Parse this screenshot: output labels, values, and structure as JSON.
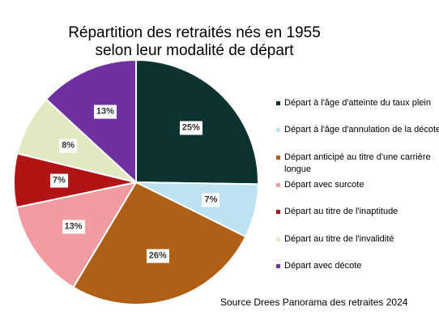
{
  "chart_data": {
    "type": "pie",
    "title": [
      "Répartition des retraités nés en 1955",
      "selon leur modalité de départ"
    ],
    "slices": [
      {
        "name": "Départ à l'âge d'atteinte du taux plein",
        "value": 25,
        "label": "25%",
        "color": "#0d3330"
      },
      {
        "name": "Départ à l'âge d'annulation de la décote",
        "value": 7,
        "label": "7%",
        "color": "#bde3f2"
      },
      {
        "name": "Départ anticipé au titre d'une carrière longue",
        "value": 26,
        "label": "26%",
        "color": "#b06016"
      },
      {
        "name": "Départ avec surcote",
        "value": 13,
        "label": "13%",
        "color": "#f29ba1"
      },
      {
        "name": "Départ au titre de l'inaptitude",
        "value": 7,
        "label": "7%",
        "color": "#b01414"
      },
      {
        "name": "Départ au titre de l'invalidité",
        "value": 8,
        "label": "8%",
        "color": "#e4e8c1"
      },
      {
        "name": "Départ avec décote",
        "value": 13,
        "label": "13%",
        "color": "#7030a0"
      }
    ],
    "legend_position": "right",
    "source": "Source Drees Panorama des retraites 2024"
  }
}
